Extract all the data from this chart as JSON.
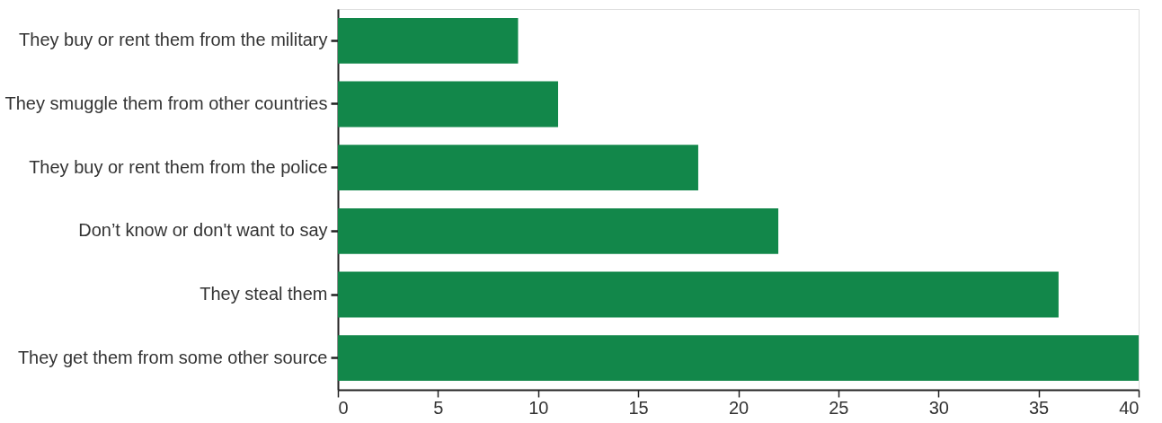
{
  "chart_data": {
    "type": "bar",
    "orientation": "horizontal",
    "categories": [
      "They buy or rent them from the military",
      "They smuggle them from other countries",
      "They buy or rent them from the police",
      "Don’t know or don't want to say",
      "They steal them",
      "They get them from some other source"
    ],
    "values": [
      9,
      11,
      18,
      22,
      36,
      40
    ],
    "color": "#12874a",
    "xlim": [
      0,
      40
    ],
    "xticks": [
      0,
      5,
      10,
      15,
      20,
      25,
      30,
      35,
      40
    ],
    "grid": false
  }
}
